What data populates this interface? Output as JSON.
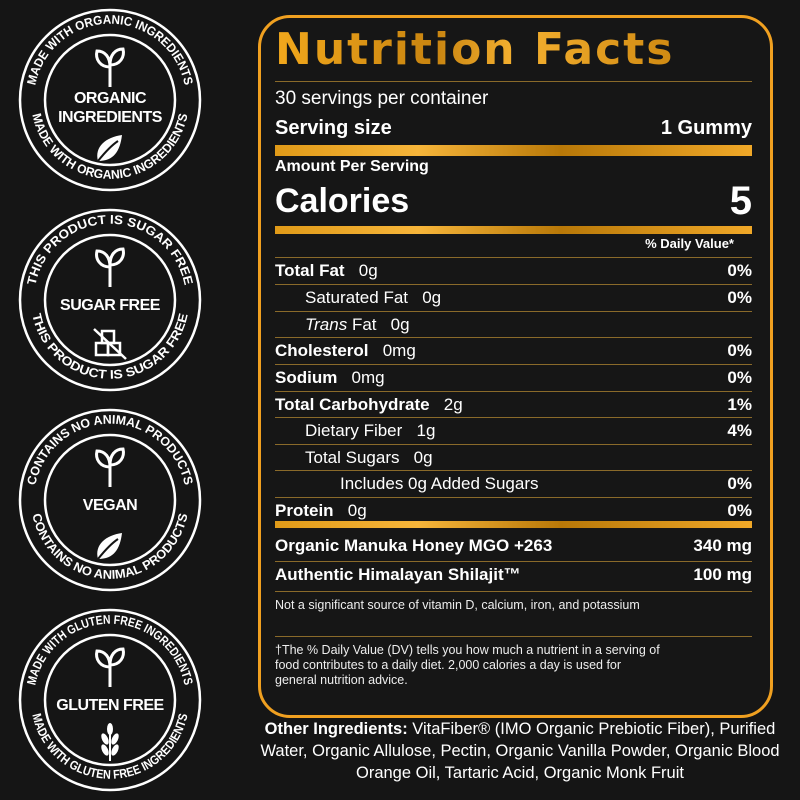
{
  "badges": [
    {
      "ring_text": "MADE WITH ORGANIC INGREDIENTS",
      "title_lines": [
        "ORGANIC",
        "INGREDIENTS"
      ],
      "icon": "leaf-icon"
    },
    {
      "ring_text": "THIS PRODUCT IS SUGAR FREE",
      "title_lines": [
        "SUGAR FREE"
      ],
      "icon": "no-sugar-cubes-icon"
    },
    {
      "ring_text": "CONTAINS NO ANIMAL PRODUCTS",
      "title_lines": [
        "VEGAN"
      ],
      "icon": "leaf-icon"
    },
    {
      "ring_text": "MADE WITH GLUTEN FREE INGREDIENTS",
      "title_lines": [
        "GLUTEN FREE"
      ],
      "icon": "wheat-icon"
    }
  ],
  "colors": {
    "accent": "#f0a020",
    "background": "#151515"
  },
  "label": {
    "title": "Nutrition Facts",
    "servings": "30 servings per container",
    "serving_size_label": "Serving size",
    "serving_size_value": "1 Gummy",
    "amount_per_serving": "Amount Per Serving",
    "calories_label": "Calories",
    "calories_value": "5",
    "dv_header": "% Daily Value*",
    "nutrients": [
      {
        "name": "Total Fat",
        "amount": "0g",
        "dv": "0%",
        "bold": true,
        "indent": 0
      },
      {
        "name": "Saturated Fat",
        "amount": "0g",
        "dv": "0%",
        "bold": false,
        "indent": 1
      },
      {
        "name": "Trans",
        "name_suffix": "Fat",
        "amount": "0g",
        "dv": "",
        "bold": false,
        "indent": 1
      },
      {
        "name": "Cholesterol",
        "amount": "0mg",
        "dv": "0%",
        "bold": true,
        "indent": 0
      },
      {
        "name": "Sodium",
        "amount": "0mg",
        "dv": "0%",
        "bold": true,
        "indent": 0
      },
      {
        "name": "Total Carbohydrate",
        "amount": "2g",
        "dv": "1%",
        "bold": true,
        "indent": 0
      },
      {
        "name": "Dietary Fiber",
        "amount": "1g",
        "dv": "4%",
        "bold": false,
        "indent": 1
      },
      {
        "name": "Total Sugars",
        "amount": "0g",
        "dv": "",
        "bold": false,
        "indent": 1
      },
      {
        "name": "Includes 0g Added Sugars",
        "amount": "",
        "dv": "0%",
        "bold": false,
        "indent": 2
      },
      {
        "name": "Protein",
        "amount": "0g",
        "dv": "0%",
        "bold": true,
        "indent": 0
      }
    ],
    "extras": [
      {
        "name": "Organic Manuka Honey MGO +263",
        "amount": "340 mg"
      },
      {
        "name": "Authentic Himalayan Shilajit™",
        "amount": "100 mg"
      }
    ],
    "note": "Not a significant source of vitamin D, calcium, iron, and potassium",
    "footnote": "†The % Daily Value (DV) tells you how much a nutrient in a serving of food contributes to a daily diet. 2,000 calories a day is used for general nutrition advice."
  },
  "ingredients": {
    "label": "Other Ingredients:",
    "text": " VitaFiber® (IMO Organic Prebiotic Fiber), Purified Water, Organic Allulose, Pectin, Organic Vanilla Powder, Organic Blood Orange Oil, Tartaric Acid, Organic Monk Fruit"
  }
}
